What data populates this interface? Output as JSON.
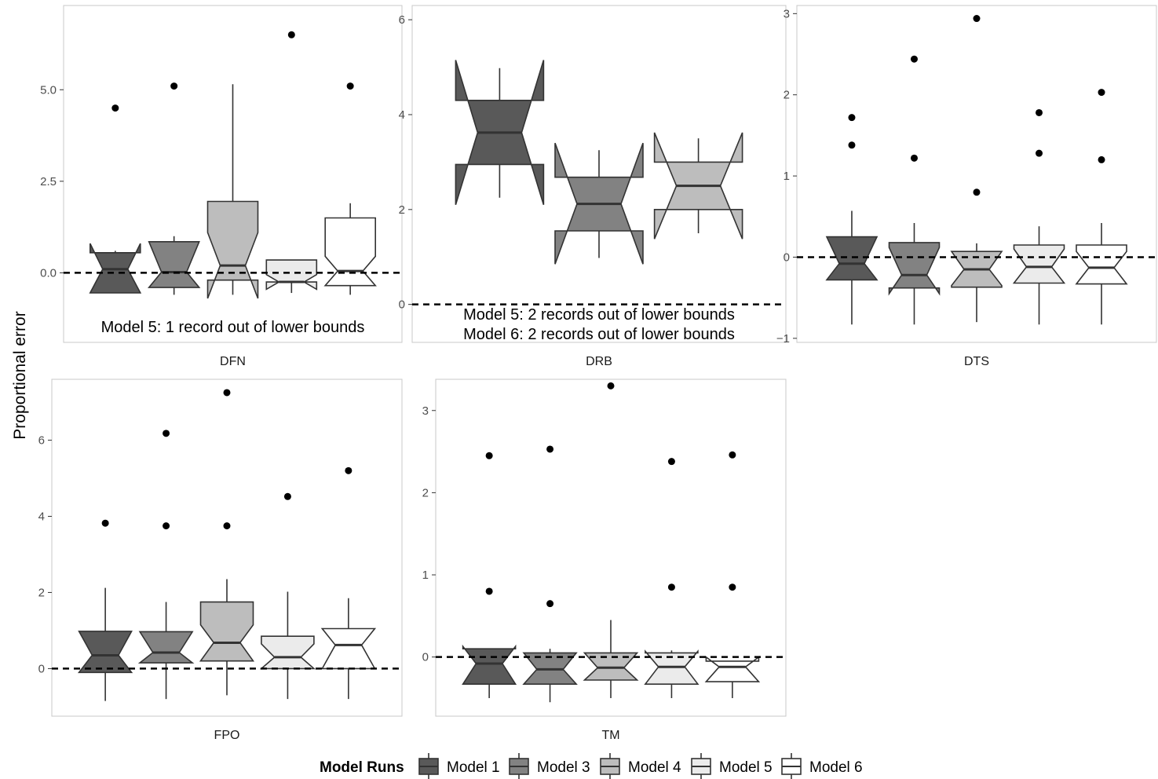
{
  "chart_data": {
    "type": "boxplot",
    "ylabel": "Proportional error",
    "legend": {
      "title": "Model Runs",
      "position": "bottom",
      "entries": [
        {
          "name": "Model 1",
          "color": "#595959"
        },
        {
          "name": "Model 3",
          "color": "#828282"
        },
        {
          "name": "Model 4",
          "color": "#bdbdbd"
        },
        {
          "name": "Model 5",
          "color": "#ebebeb"
        },
        {
          "name": "Model 6",
          "color": "#ffffff"
        }
      ]
    },
    "reference_line": {
      "y": 0,
      "style": "dashed"
    },
    "panels": [
      {
        "label": "DFN",
        "ylim": [
          -1.9,
          7.3
        ],
        "yticks": [
          {
            "v": 0,
            "t": "0.0"
          },
          {
            "v": 2.5,
            "t": "2.5"
          },
          {
            "v": 5,
            "t": "5.0"
          }
        ],
        "notes": [
          "Model 5: 1 record out of lower bounds"
        ],
        "boxes": [
          {
            "model": "Model 1",
            "lower_whisker": -0.55,
            "q1": -0.55,
            "median": 0.1,
            "q3": 0.55,
            "upper_whisker": 0.6,
            "notch_low": -0.55,
            "notch_high": 0.8,
            "outliers": [
              4.5
            ]
          },
          {
            "model": "Model 3",
            "lower_whisker": -0.6,
            "q1": -0.4,
            "median": 0.02,
            "q3": 0.85,
            "upper_whisker": 1.0,
            "notch_low": -0.4,
            "notch_high": 0.85,
            "outliers": [
              5.1
            ]
          },
          {
            "model": "Model 4",
            "lower_whisker": -0.6,
            "q1": -0.2,
            "median": 0.2,
            "q3": 1.95,
            "upper_whisker": 5.15,
            "notch_low": -0.7,
            "notch_high": 1.1,
            "outliers": []
          },
          {
            "model": "Model 5",
            "lower_whisker": -0.55,
            "q1": -0.25,
            "median": -0.25,
            "q3": 0.35,
            "upper_whisker": 0.35,
            "notch_low": -0.45,
            "notch_high": -0.05,
            "outliers": [
              6.5
            ]
          },
          {
            "model": "Model 6",
            "lower_whisker": -0.6,
            "q1": -0.35,
            "median": 0.05,
            "q3": 1.5,
            "upper_whisker": 1.9,
            "notch_low": -0.35,
            "notch_high": 0.45,
            "outliers": [
              5.1
            ]
          }
        ]
      },
      {
        "label": "DRB",
        "ylim": [
          -0.8,
          6.3
        ],
        "yticks": [
          {
            "v": 0,
            "t": "0"
          },
          {
            "v": 2,
            "t": "2"
          },
          {
            "v": 4,
            "t": "4"
          },
          {
            "v": 6,
            "t": "6"
          }
        ],
        "notes": [
          "Model 5: 2 records out of lower bounds",
          "Model 6: 2 records out of lower bounds"
        ],
        "boxes": [
          {
            "model": "Model 1",
            "lower_whisker": 2.25,
            "q1": 2.95,
            "median": 3.62,
            "q3": 4.3,
            "upper_whisker": 4.98,
            "notch_low": 2.1,
            "notch_high": 5.15,
            "outliers": []
          },
          {
            "model": "Model 3",
            "lower_whisker": 0.98,
            "q1": 1.55,
            "median": 2.12,
            "q3": 2.68,
            "upper_whisker": 3.25,
            "notch_low": 0.85,
            "notch_high": 3.4,
            "outliers": []
          },
          {
            "model": "Model 4",
            "lower_whisker": 1.5,
            "q1": 2.0,
            "median": 2.5,
            "q3": 3.0,
            "upper_whisker": 3.5,
            "notch_low": 1.38,
            "notch_high": 3.62,
            "outliers": []
          }
        ]
      },
      {
        "label": "DTS",
        "ylim": [
          -1.05,
          3.1
        ],
        "yticks": [
          {
            "v": -1,
            "t": "−1"
          },
          {
            "v": 0,
            "t": "0"
          },
          {
            "v": 1,
            "t": "1"
          },
          {
            "v": 2,
            "t": "2"
          },
          {
            "v": 3,
            "t": "3"
          }
        ],
        "notes": [],
        "boxes": [
          {
            "model": "Model 1",
            "lower_whisker": -0.83,
            "q1": -0.28,
            "median": -0.08,
            "q3": 0.25,
            "upper_whisker": 0.57,
            "notch_low": -0.28,
            "notch_high": 0.25,
            "outliers": [
              1.38,
              1.72
            ]
          },
          {
            "model": "Model 3",
            "lower_whisker": -0.83,
            "q1": -0.38,
            "median": -0.22,
            "q3": 0.18,
            "upper_whisker": 0.42,
            "notch_low": -0.45,
            "notch_high": 0.12,
            "outliers": [
              1.22,
              2.44
            ]
          },
          {
            "model": "Model 4",
            "lower_whisker": -0.8,
            "q1": -0.37,
            "median": -0.15,
            "q3": 0.07,
            "upper_whisker": 0.17,
            "notch_low": -0.35,
            "notch_high": 0.07,
            "outliers": [
              0.8,
              2.94
            ]
          },
          {
            "model": "Model 5",
            "lower_whisker": -0.83,
            "q1": -0.32,
            "median": -0.12,
            "q3": 0.15,
            "upper_whisker": 0.38,
            "notch_low": -0.32,
            "notch_high": 0.1,
            "outliers": [
              1.28,
              1.78
            ]
          },
          {
            "model": "Model 6",
            "lower_whisker": -0.83,
            "q1": -0.33,
            "median": -0.13,
            "q3": 0.15,
            "upper_whisker": 0.42,
            "notch_low": -0.33,
            "notch_high": 0.07,
            "outliers": [
              1.2,
              2.03
            ]
          }
        ]
      },
      {
        "label": "FPO",
        "ylim": [
          -1.25,
          7.6
        ],
        "yticks": [
          {
            "v": 0,
            "t": "0"
          },
          {
            "v": 2,
            "t": "2"
          },
          {
            "v": 4,
            "t": "4"
          },
          {
            "v": 6,
            "t": "6"
          }
        ],
        "notes": [],
        "boxes": [
          {
            "model": "Model 1",
            "lower_whisker": -0.85,
            "q1": -0.1,
            "median": 0.35,
            "q3": 0.98,
            "upper_whisker": 2.12,
            "notch_low": -0.1,
            "notch_high": 0.98,
            "outliers": [
              3.82
            ]
          },
          {
            "model": "Model 3",
            "lower_whisker": -0.8,
            "q1": 0.15,
            "median": 0.42,
            "q3": 0.97,
            "upper_whisker": 1.75,
            "notch_low": 0.15,
            "notch_high": 0.97,
            "outliers": [
              3.75,
              6.18
            ]
          },
          {
            "model": "Model 4",
            "lower_whisker": -0.7,
            "q1": 0.2,
            "median": 0.68,
            "q3": 1.75,
            "upper_whisker": 2.35,
            "notch_low": 0.2,
            "notch_high": 1.15,
            "outliers": [
              3.75,
              7.25
            ]
          },
          {
            "model": "Model 5",
            "lower_whisker": -0.8,
            "q1": 0.0,
            "median": 0.3,
            "q3": 0.85,
            "upper_whisker": 2.02,
            "notch_low": 0.0,
            "notch_high": 0.65,
            "outliers": [
              4.52
            ]
          },
          {
            "model": "Model 6",
            "lower_whisker": -0.8,
            "q1": 0.0,
            "median": 0.62,
            "q3": 1.05,
            "upper_whisker": 1.85,
            "notch_low": 0.0,
            "notch_high": 1.05,
            "outliers": [
              5.2
            ]
          }
        ]
      },
      {
        "label": "TM",
        "ylim": [
          -0.72,
          3.38
        ],
        "yticks": [
          {
            "v": 0,
            "t": "0"
          },
          {
            "v": 1,
            "t": "1"
          },
          {
            "v": 2,
            "t": "2"
          },
          {
            "v": 3,
            "t": "3"
          }
        ],
        "notes": [],
        "boxes": [
          {
            "model": "Model 1",
            "lower_whisker": -0.5,
            "q1": -0.33,
            "median": -0.08,
            "q3": 0.1,
            "upper_whisker": 0.1,
            "notch_low": -0.33,
            "notch_high": 0.13,
            "outliers": [
              0.8,
              2.45
            ]
          },
          {
            "model": "Model 3",
            "lower_whisker": -0.55,
            "q1": -0.33,
            "median": -0.15,
            "q3": 0.05,
            "upper_whisker": 0.1,
            "notch_low": -0.33,
            "notch_high": 0.05,
            "outliers": [
              0.65,
              2.53
            ]
          },
          {
            "model": "Model 4",
            "lower_whisker": -0.5,
            "q1": -0.28,
            "median": -0.13,
            "q3": 0.05,
            "upper_whisker": 0.45,
            "notch_low": -0.28,
            "notch_high": 0.05,
            "outliers": [
              3.3
            ]
          },
          {
            "model": "Model 5",
            "lower_whisker": -0.5,
            "q1": -0.33,
            "median": -0.12,
            "q3": 0.05,
            "upper_whisker": 0.08,
            "notch_low": -0.33,
            "notch_high": 0.07,
            "outliers": [
              0.85,
              2.38
            ]
          },
          {
            "model": "Model 6",
            "lower_whisker": -0.5,
            "q1": -0.3,
            "median": -0.12,
            "q3": -0.05,
            "upper_whisker": -0.05,
            "notch_low": -0.3,
            "notch_high": 0.0,
            "outliers": [
              0.85,
              2.46
            ]
          }
        ]
      }
    ]
  }
}
